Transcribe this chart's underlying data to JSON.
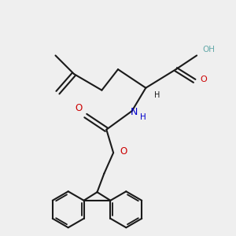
{
  "background_color": "#efefef",
  "bond_color": "#1a1a1a",
  "oxygen_color": "#cc0000",
  "nitrogen_color": "#0000cc",
  "oh_color": "#66aaaa",
  "line_width": 1.5,
  "figsize": [
    3.0,
    3.0
  ],
  "dpi": 100,
  "xlim": [
    -1.0,
    9.0
  ],
  "ylim": [
    -0.5,
    9.5
  ]
}
